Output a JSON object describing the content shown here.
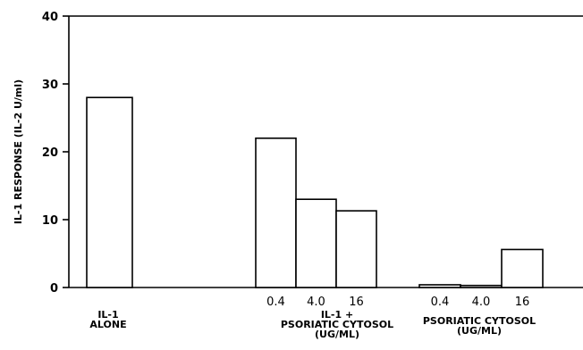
{
  "chart_data": {
    "type": "bar",
    "title": "",
    "ylabel": "IL-1 RESPONSE (IL-2 U/ml)",
    "ylim": [
      0,
      40
    ],
    "yticks": [
      0,
      10,
      20,
      30,
      40
    ],
    "grid": false,
    "groups": [
      {
        "name_lines": [
          "IL-1",
          "ALONE"
        ],
        "bars": [
          {
            "label": "",
            "value": 28
          }
        ]
      },
      {
        "name_lines": [
          "IL-1 +",
          "PSORIATIC CYTOSOL",
          "(UG/ML)"
        ],
        "bars": [
          {
            "label": "0.4",
            "value": 22
          },
          {
            "label": "4.0",
            "value": 13
          },
          {
            "label": "16",
            "value": 11.3
          }
        ]
      },
      {
        "name_lines": [
          "PSORIATIC CYTOSOL",
          "(UG/ML)"
        ],
        "bars": [
          {
            "label": "0.4",
            "value": 0.4
          },
          {
            "label": "4.0",
            "value": 0.3
          },
          {
            "label": "16",
            "value": 5.6
          }
        ]
      }
    ]
  }
}
